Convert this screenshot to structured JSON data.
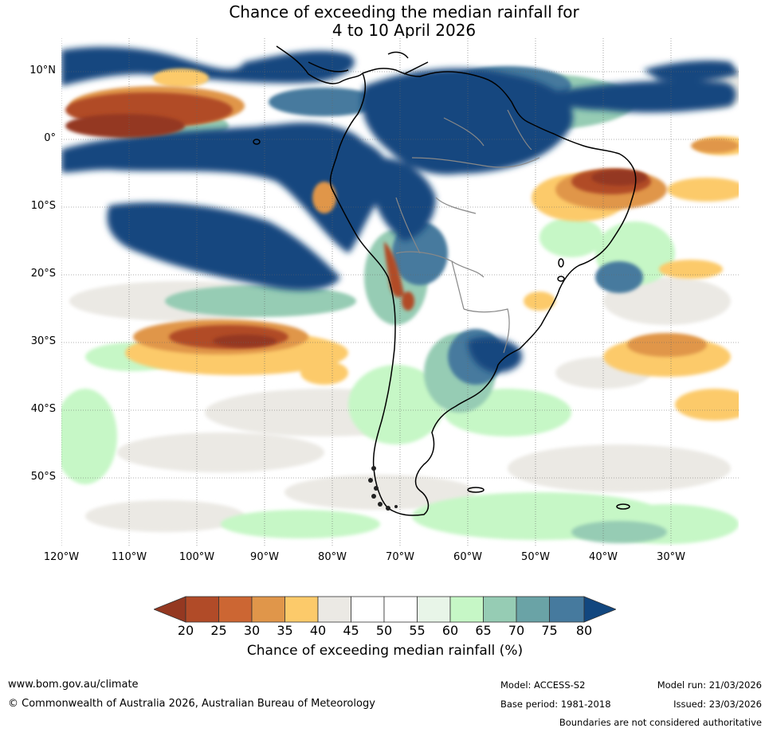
{
  "title": {
    "line1": "Chance of exceeding the median rainfall for",
    "line2": "4 to 10 April 2026"
  },
  "map": {
    "lat_labels": [
      "10°N",
      "0°",
      "10°S",
      "20°S",
      "30°S",
      "40°S",
      "50°S"
    ],
    "lon_labels": [
      "120°W",
      "110°W",
      "100°W",
      "90°W",
      "80°W",
      "70°W",
      "60°W",
      "50°W",
      "40°W",
      "30°W"
    ]
  },
  "colorbar": {
    "ticks": [
      "20",
      "25",
      "30",
      "35",
      "40",
      "45",
      "50",
      "55",
      "60",
      "65",
      "70",
      "75",
      "80"
    ],
    "colors": {
      "below_20": "#943821",
      "c20_25": "#b14b28",
      "c25_30": "#cc6633",
      "c30_35": "#e0964a",
      "c35_40": "#fcca6a",
      "c40_45": "#ebe9e4",
      "c45_50": "#ffffff",
      "c50_55": "#ffffff",
      "c55_60": "#e8f5e8",
      "c60_65": "#c6f7c6",
      "c65_70": "#96ccb4",
      "c70_75": "#6aa3a6",
      "c75_80": "#467a9e",
      "above_80": "#12477f"
    },
    "label": "Chance of exceeding median rainfall (%)"
  },
  "footer": {
    "website": "www.bom.gov.au/climate",
    "copyright": "© Commonwealth of Australia 2026, Australian Bureau of Meteorology",
    "model": "Model: ACCESS-S2",
    "base_period": "Base period: 1981-2018",
    "model_run": "Model run: 21/03/2026",
    "issued": "Issued: 23/03/2026",
    "disclaimer": "Boundaries are not considered authoritative"
  }
}
